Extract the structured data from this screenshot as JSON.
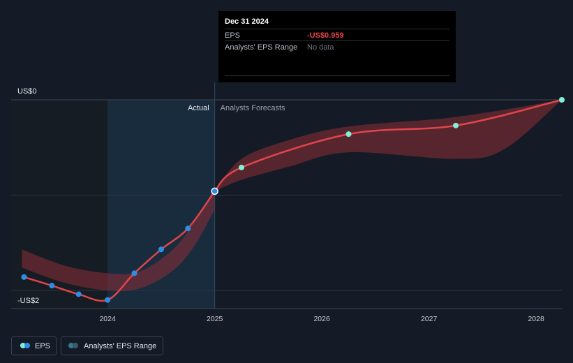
{
  "chart_data": {
    "type": "line",
    "title": "EPS",
    "y_axis": {
      "top_label": "US$0",
      "bottom_label": "-US$2",
      "ylim": [
        -2.13,
        0
      ]
    },
    "x_axis": {
      "tick_labels": [
        "2024",
        "2025",
        "2026",
        "2027",
        "2028"
      ],
      "xlim": [
        2023.1,
        2028.24
      ]
    },
    "regions": {
      "actual_label": "Actual",
      "forecast_label": "Analysts Forecasts",
      "divider_x": 2025.0
    },
    "series": [
      {
        "name": "EPS Actual",
        "points": [
          [
            2023.22,
            -1.86
          ],
          [
            2023.48,
            -1.95
          ],
          [
            2023.73,
            -2.04
          ],
          [
            2024.0,
            -2.1
          ],
          [
            2024.25,
            -1.82
          ],
          [
            2024.5,
            -1.57
          ],
          [
            2024.75,
            -1.35
          ],
          [
            2025.0,
            -0.959
          ]
        ]
      },
      {
        "name": "EPS Forecast",
        "points": [
          [
            2025.0,
            -0.959
          ],
          [
            2025.25,
            -0.71
          ],
          [
            2026.25,
            -0.36
          ],
          [
            2027.25,
            -0.27
          ],
          [
            2028.24,
            0.0
          ]
        ]
      }
    ],
    "ranges": [
      {
        "name": "Analysts' EPS Range (past)",
        "upper": [
          [
            2023.2,
            -1.57
          ],
          [
            2023.6,
            -1.74
          ],
          [
            2024.0,
            -1.82
          ],
          [
            2024.3,
            -1.8
          ],
          [
            2024.6,
            -1.58
          ],
          [
            2024.8,
            -1.3
          ],
          [
            2025.0,
            -0.96
          ]
        ],
        "lower": [
          [
            2023.2,
            -1.76
          ],
          [
            2023.6,
            -1.92
          ],
          [
            2024.0,
            -2.0
          ],
          [
            2024.3,
            -1.98
          ],
          [
            2024.6,
            -1.8
          ],
          [
            2024.8,
            -1.55
          ],
          [
            2025.0,
            -1.15
          ]
        ]
      },
      {
        "name": "Analysts' EPS Range (forecast)",
        "upper": [
          [
            2025.0,
            -0.96
          ],
          [
            2025.25,
            -0.62
          ],
          [
            2025.7,
            -0.42
          ],
          [
            2026.25,
            -0.28
          ],
          [
            2027.25,
            -0.18
          ],
          [
            2028.24,
            0.0
          ]
        ],
        "lower": [
          [
            2025.0,
            -0.96
          ],
          [
            2025.25,
            -0.84
          ],
          [
            2025.7,
            -0.7
          ],
          [
            2026.25,
            -0.55
          ],
          [
            2027.25,
            -0.62
          ],
          [
            2027.7,
            -0.52
          ],
          [
            2028.24,
            0.0
          ]
        ]
      }
    ],
    "highlight_point": [
      2025.0,
      -0.959
    ]
  },
  "colors": {
    "background": "#151b26",
    "line": "#e0454a",
    "band": "#8e2e35",
    "actual_dot": "#2e8ee6",
    "forecast_dot": "#7ff0d6",
    "actual_shade": "#1a3347",
    "grid": "#2c3340"
  },
  "tooltip": {
    "date": "Dec 31 2024",
    "eps_label": "EPS",
    "eps_value": "-US$0.959",
    "range_label": "Analysts' EPS Range",
    "range_value": "No data"
  },
  "legend": {
    "eps_label": "EPS",
    "range_label": "Analysts' EPS Range"
  }
}
